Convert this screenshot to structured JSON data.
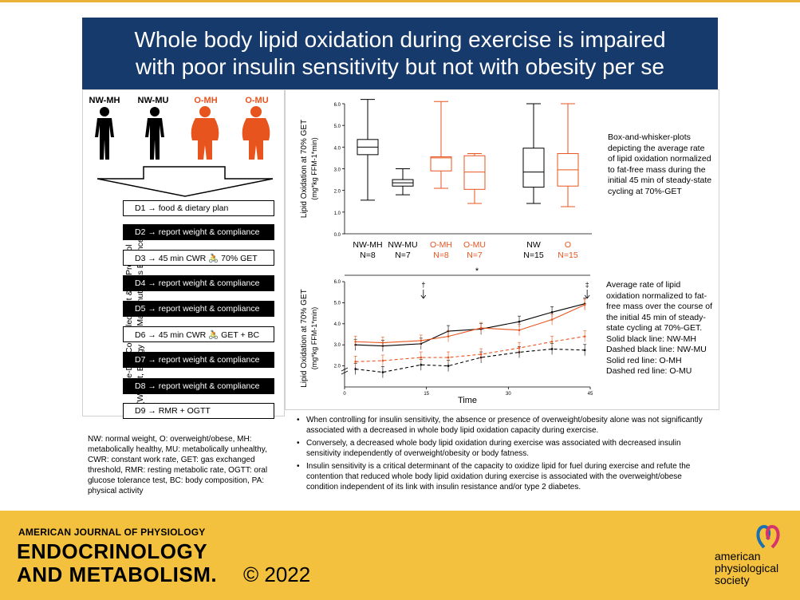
{
  "title": {
    "line1": "Whole body lipid oxidation during exercise is impaired",
    "line2": "with poor insulin sensitivity but not with obesity per se"
  },
  "colors": {
    "banner": "#163a6b",
    "accent_orange": "#e8541e",
    "footer": "#f3c13e",
    "black": "#000000"
  },
  "groups": [
    {
      "label": "NW-MH",
      "color": "#000000"
    },
    {
      "label": "NW-MU",
      "color": "#000000"
    },
    {
      "label": "O-MH",
      "color": "#e8541e"
    },
    {
      "label": "O-MU",
      "color": "#e8541e"
    }
  ],
  "protocol": {
    "side_label_line1": "Nine-Day Controlled Diet & PA Protocol",
    "side_label_line2": "(Weight, Energy and Macronutrients Balanced)",
    "steps": [
      {
        "text": "D1 → food & dietary plan",
        "style": "white"
      },
      {
        "text": "D2 → report weight & compliance",
        "style": "black"
      },
      {
        "text": "D3 → 45 min CWR 🚴 70% GET",
        "style": "white"
      },
      {
        "text": "D4 → report weight & compliance",
        "style": "black"
      },
      {
        "text": "D5 → report weight & compliance",
        "style": "black"
      },
      {
        "text": "D6 → 45 min CWR 🚴 GET + BC",
        "style": "white"
      },
      {
        "text": "D7 → report weight & compliance",
        "style": "black"
      },
      {
        "text": "D8 → report weight & compliance",
        "style": "black"
      },
      {
        "text": "D9 → RMR + OGTT",
        "style": "white"
      }
    ]
  },
  "abbreviations": "NW: normal weight, O: overweight/obese, MH: metabolically healthy, MU: metabolically unhealthy, CWR: constant work rate, GET: gas exchanged threshold, RMR: resting metabolic rate, OGTT: oral glucose tolerance test, BC: body composition, PA: physical activity",
  "chart_data": [
    {
      "type": "box",
      "ylabel_line1": "Lipid Oxidation at 70% GET",
      "ylabel_line2": "(mg*kg FFM-1*min)",
      "ylim": [
        0,
        6
      ],
      "yticks": [
        "0.0",
        "1.0",
        "2.0",
        "3.0",
        "4.0",
        "5.0",
        "6.0"
      ],
      "categories": [
        {
          "name": "NW-MH",
          "n": "N=8",
          "color": "#000000",
          "min": 1.55,
          "q1": 3.65,
          "median": 4.0,
          "q3": 4.35,
          "max": 6.2
        },
        {
          "name": "NW-MU",
          "n": "N=7",
          "color": "#000000",
          "min": 1.8,
          "q1": 2.2,
          "median": 2.35,
          "q3": 2.5,
          "max": 3.0
        },
        {
          "name": "O-MH",
          "n": "N=8",
          "color": "#e8541e",
          "min": 2.1,
          "q1": 2.9,
          "median": 3.5,
          "q3": 3.55,
          "max": 6.1
        },
        {
          "name": "O-MU",
          "n": "N=7",
          "color": "#e8541e",
          "min": 1.4,
          "q1": 2.05,
          "median": 2.85,
          "q3": 3.6,
          "max": 3.7
        },
        {
          "name": "NW",
          "n": "N=15",
          "color": "#000000",
          "min": 1.4,
          "q1": 2.15,
          "median": 2.85,
          "q3": 3.95,
          "max": 6.0
        },
        {
          "name": "O",
          "n": "N=15",
          "color": "#e8541e",
          "min": 1.25,
          "q1": 2.2,
          "median": 2.95,
          "q3": 3.7,
          "max": 6.0
        }
      ],
      "caption": "Box-and-whisker-plots depicting the average rate of lipid oxidation normalized to fat-free mass during the initial 45 min of steady-state cycling at 70%-GET"
    },
    {
      "type": "line",
      "ylabel_line1": "Lipid Oxidation at 70% GET",
      "ylabel_line2": "(mg*kg FFM-1*min)",
      "xlabel": "Time",
      "xlim": [
        0,
        45
      ],
      "ylim": [
        1.0,
        6.0
      ],
      "xticks": [
        "0",
        "15",
        "30",
        "45"
      ],
      "yticks": [
        "2.0",
        "3.0",
        "4.0",
        "5.0",
        "6.0"
      ],
      "annotations": {
        "star": "*",
        "dagger": "†",
        "double_dagger": "‡"
      },
      "x": [
        2,
        7,
        14,
        19,
        25,
        32,
        38,
        44
      ],
      "series": [
        {
          "name": "NW-MH",
          "color": "#000000",
          "dash": false,
          "values": [
            3.0,
            2.95,
            3.05,
            3.65,
            3.75,
            4.1,
            4.55,
            4.95
          ]
        },
        {
          "name": "NW-MU",
          "color": "#000000",
          "dash": true,
          "values": [
            1.85,
            1.7,
            2.05,
            2.0,
            2.4,
            2.65,
            2.8,
            2.75
          ]
        },
        {
          "name": "O-MH",
          "color": "#e8541e",
          "dash": false,
          "values": [
            3.15,
            3.1,
            3.2,
            3.4,
            3.8,
            3.7,
            4.2,
            4.9
          ]
        },
        {
          "name": "O-MU",
          "color": "#e8541e",
          "dash": true,
          "values": [
            2.2,
            2.25,
            2.4,
            2.4,
            2.55,
            2.85,
            3.15,
            3.4
          ]
        }
      ],
      "caption_lines": [
        "Average rate of lipid oxidation normalized to fat-free mass over the course of the initial 45 min of steady-state cycling at 70%-GET.",
        "Solid black line: NW-MH",
        "Dashed black line: NW-MU",
        "Solid red line: O-MH",
        "Dashed red line: O-MU"
      ]
    }
  ],
  "bullets": [
    "When controlling for insulin sensitivity, the absence or presence of overweight/obesity alone was not significantly associated with a decreased in whole body lipid oxidation capacity during exercise.",
    "Conversely, a decreased whole body lipid oxidation during exercise was associated with decreased insulin sensitivity independently of overweight/obesity or body fatness.",
    "Insulin sensitivity is a critical determinant of the capacity to oxidize lipid for fuel during exercise and refute the contention that reduced whole body lipid oxidation during exercise is associated with the overweight/obese condition independent of its link with insulin resistance and/or type 2 diabetes."
  ],
  "footer": {
    "journal_small": "AMERICAN JOURNAL OF PHYSIOLOGY",
    "journal_big_line1": "ENDOCRINOLOGY",
    "journal_big_line2": "AND METABOLISM.",
    "copyright": "© 2022",
    "society_line1": "american",
    "society_line2": "physiological",
    "society_line3": "society"
  }
}
